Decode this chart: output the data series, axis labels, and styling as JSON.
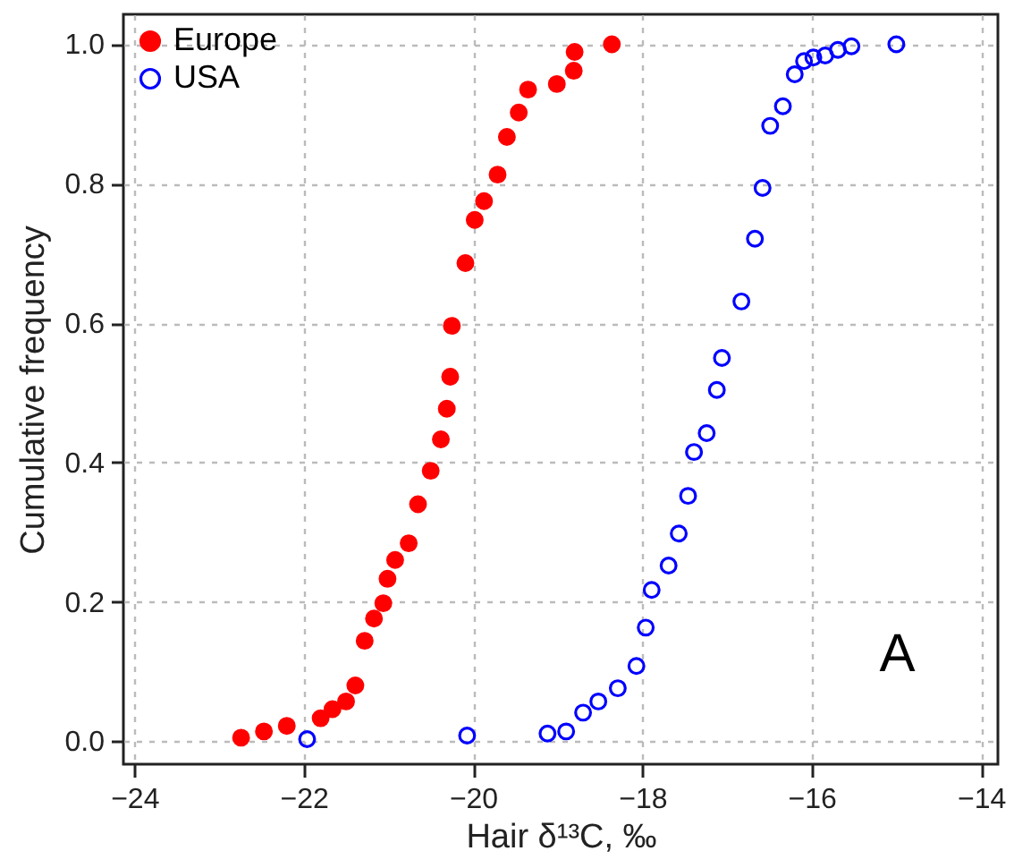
{
  "chart_data": {
    "type": "scatter",
    "xlabel": "Hair  δ¹³C, ‰",
    "ylabel": "Cumulative frequency",
    "annotations": [
      "A"
    ],
    "xlim": [
      -24.13,
      -13.8
    ],
    "ylim": [
      -0.033,
      1.043
    ],
    "xticks": [
      -24,
      -22,
      -20,
      -18,
      -16,
      -14
    ],
    "yticks": [
      {
        "value": 0,
        "label": "0.0"
      },
      {
        "value": 0.2,
        "label": "0.2"
      },
      {
        "value": 0.4,
        "label": "0.4"
      },
      {
        "value": 0.6,
        "label": "0.6"
      },
      {
        "value": 0.8,
        "label": "0.8"
      },
      {
        "value": 1,
        "label": "1.0"
      }
    ],
    "grid": true,
    "legend": "top left",
    "marker": "circle",
    "series": [
      {
        "name": "Europe",
        "color": "#ff0000",
        "x": [
          -22.74,
          -22.47,
          -22.2,
          -21.8,
          -21.66,
          -21.5,
          -21.39,
          -21.28,
          -21.17,
          -21.06,
          -21.01,
          -20.92,
          -20.76,
          -20.65,
          -20.5,
          -20.38,
          -20.31,
          -20.27,
          -20.25,
          -20.09,
          -19.98,
          -19.87,
          -19.71,
          -19.6,
          -19.46,
          -19.35,
          -19.01,
          -18.81,
          -18.8,
          -18.36
        ],
        "values": [
          0.005,
          0.014,
          0.022,
          0.033,
          0.046,
          0.057,
          0.08,
          0.144,
          0.176,
          0.198,
          0.233,
          0.26,
          0.284,
          0.34,
          0.388,
          0.433,
          0.477,
          0.523,
          0.596,
          0.686,
          0.748,
          0.775,
          0.813,
          0.867,
          0.902,
          0.935,
          0.943,
          0.962,
          0.989,
          1.0
        ]
      },
      {
        "name": "USA",
        "color": "#0000ff",
        "x": [
          -21.96,
          -20.07,
          -19.12,
          -18.9,
          -18.7,
          -18.52,
          -18.29,
          -18.07,
          -17.96,
          -17.89,
          -17.69,
          -17.57,
          -17.46,
          -17.39,
          -17.24,
          -17.12,
          -17.06,
          -16.83,
          -16.67,
          -16.58,
          -16.49,
          -16.34,
          -16.2,
          -16.09,
          -15.98,
          -15.84,
          -15.69,
          -15.53,
          -15.0
        ],
        "values": [
          0.003,
          0.008,
          0.011,
          0.014,
          0.041,
          0.057,
          0.076,
          0.108,
          0.163,
          0.217,
          0.252,
          0.298,
          0.352,
          0.415,
          0.442,
          0.504,
          0.55,
          0.631,
          0.721,
          0.794,
          0.883,
          0.911,
          0.957,
          0.976,
          0.981,
          0.984,
          0.992,
          0.997,
          1.0
        ]
      }
    ]
  }
}
